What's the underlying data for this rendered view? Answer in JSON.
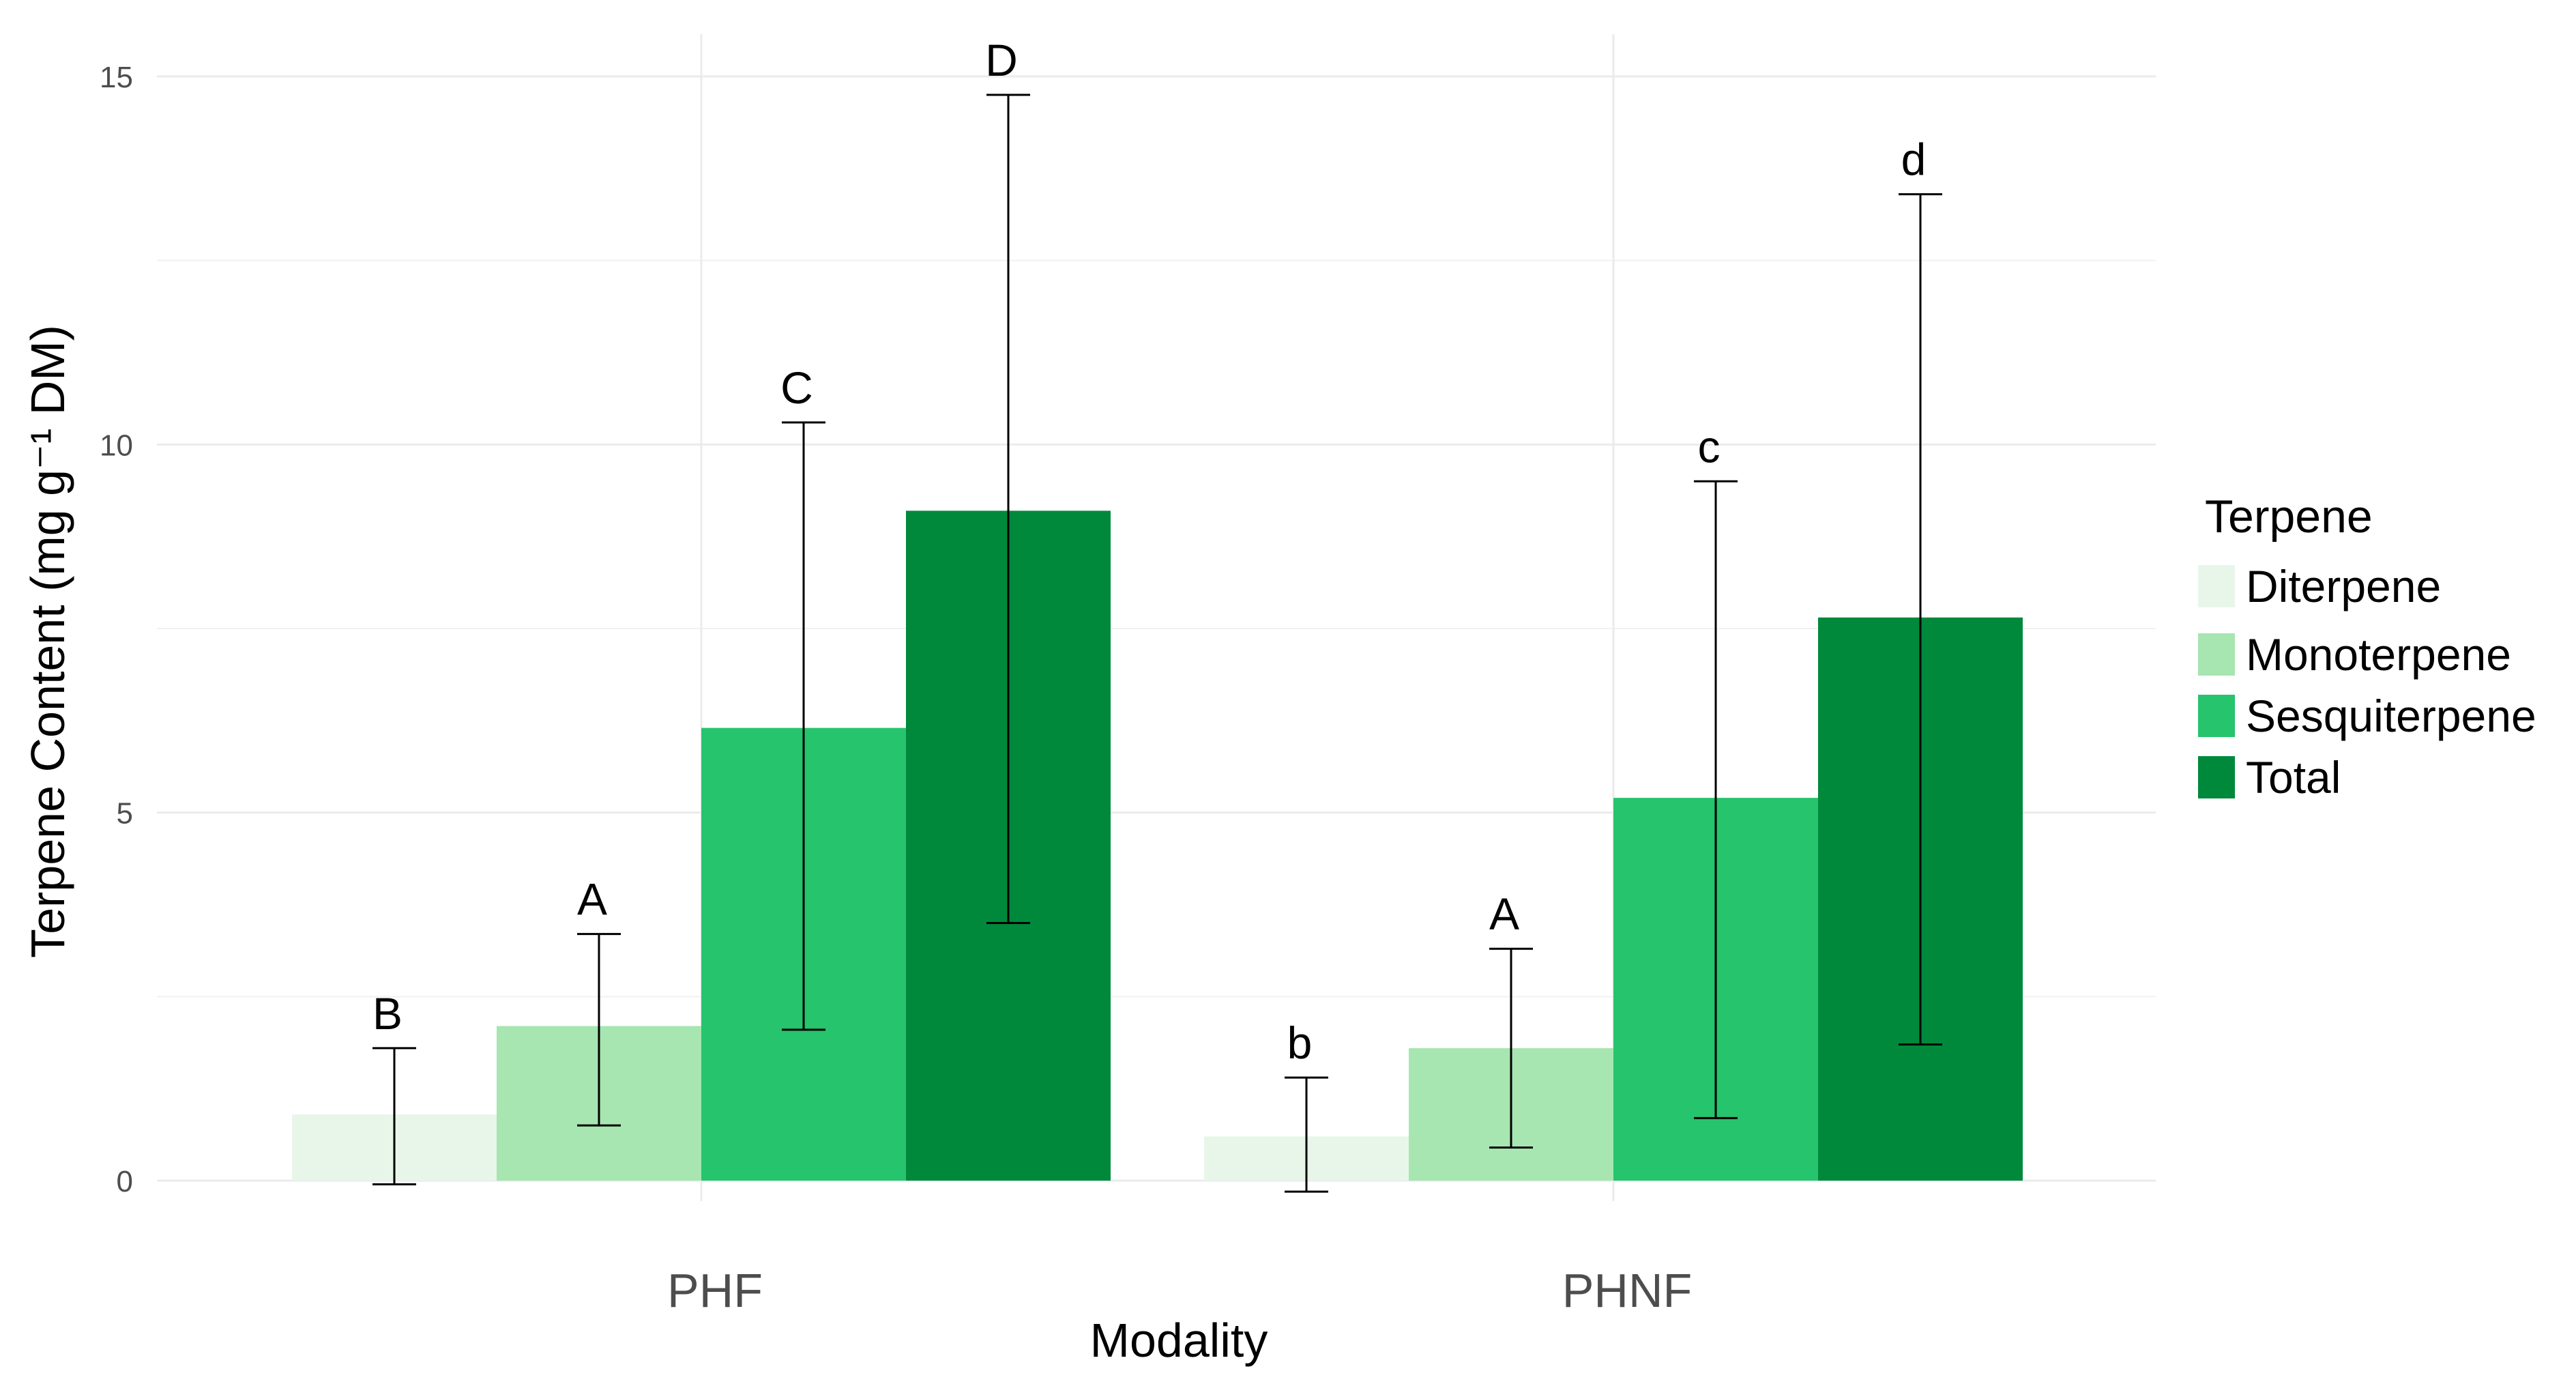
{
  "chart_data": {
    "type": "bar",
    "title": "",
    "xlabel": "Modality",
    "ylabel": "Terpene Content (mg g⁻¹ DM)",
    "ylim": [
      0,
      15
    ],
    "yticks": [
      0,
      5,
      10,
      15
    ],
    "categories": [
      "PHF",
      "PHNF"
    ],
    "legend_title": "Terpene",
    "legend_position": "right",
    "series": [
      {
        "name": "Diterpene",
        "color": "#e8f6ea",
        "values": [
          0.9,
          0.6
        ],
        "err_low": [
          -0.05,
          -0.15
        ],
        "err_high": [
          1.8,
          1.4
        ],
        "letters": [
          "B",
          "b"
        ]
      },
      {
        "name": "Monoterpene",
        "color": "#a7e5b1",
        "values": [
          2.1,
          1.8
        ],
        "err_low": [
          0.75,
          0.45
        ],
        "err_high": [
          3.35,
          3.15
        ],
        "letters": [
          "A",
          "A"
        ]
      },
      {
        "name": "Sesquiterpene",
        "color": "#26c46d",
        "values": [
          6.15,
          5.2
        ],
        "err_low": [
          2.05,
          0.85
        ],
        "err_high": [
          10.3,
          9.5
        ],
        "letters": [
          "C",
          "c"
        ]
      },
      {
        "name": "Total",
        "color": "#00893b",
        "values": [
          9.1,
          7.65
        ],
        "err_low": [
          3.5,
          1.85
        ],
        "err_high": [
          14.75,
          13.4
        ],
        "letters": [
          "D",
          "d"
        ]
      }
    ]
  }
}
